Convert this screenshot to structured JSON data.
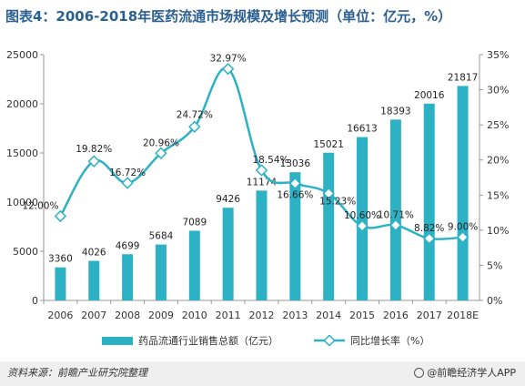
{
  "title": "图表4：2006-2018年医药流通市场规模及增长预测（单位：亿元，%）",
  "footer": {
    "source": "资料来源：前瞻产业研究院整理",
    "brand": "@前瞻经济学人APP"
  },
  "colors": {
    "bar": "#2db2c5",
    "line": "#2db2c5",
    "title": "#2a5f92"
  },
  "chart_data": {
    "type": "bar",
    "categories": [
      "2006",
      "2007",
      "2008",
      "2009",
      "2010",
      "2011",
      "2012",
      "2013",
      "2014",
      "2015",
      "2016",
      "2017",
      "2018E"
    ],
    "series": [
      {
        "name": "药品流通行业销售总额（亿元）",
        "type": "bar",
        "axis": "left",
        "values": [
          3360,
          4026,
          4699,
          5684,
          7089,
          9426,
          11174,
          13036,
          15021,
          16613,
          18393,
          20016,
          21817
        ],
        "labels": [
          "3360",
          "4026",
          "4699",
          "5684",
          "7089",
          "9426",
          "11174",
          "13036",
          "15021",
          "16613",
          "18393",
          "20016",
          "21817"
        ]
      },
      {
        "name": "同比增长率（%）",
        "type": "line",
        "axis": "right",
        "values": [
          12.0,
          19.82,
          16.72,
          20.96,
          24.72,
          32.97,
          18.54,
          16.66,
          15.23,
          10.6,
          10.71,
          8.82,
          9.0
        ],
        "labels": [
          "12.00%",
          "19.82%",
          "16.72%",
          "20.96%",
          "24.72%",
          "32.97%",
          "18.54%",
          "16.66%",
          "15.23%",
          "10.60%",
          "10.71%",
          "8.82%",
          "9.00%"
        ]
      }
    ],
    "y_left": {
      "ylim": [
        0,
        25000
      ],
      "ticks": [
        "0",
        "5000",
        "10000",
        "15000",
        "20000",
        "25000"
      ]
    },
    "y_right": {
      "ylim": [
        0,
        35
      ],
      "ticks": [
        "0%",
        "5%",
        "10%",
        "15%",
        "20%",
        "25%",
        "30%",
        "35%"
      ]
    },
    "legend_placement": "bottom",
    "grid": false
  }
}
